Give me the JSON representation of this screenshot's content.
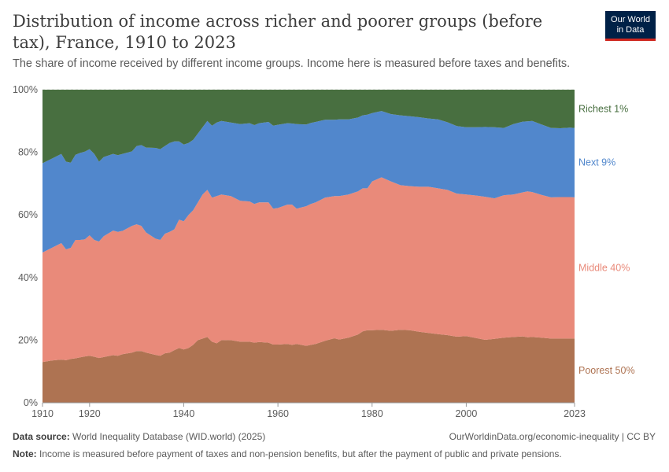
{
  "header": {
    "title": "Distribution of income across richer and poorer groups (before tax), France, 1910 to 2023",
    "subtitle": "The share of income received by different income groups. Income here is measured before taxes and benefits.",
    "logo_line1": "Our World",
    "logo_line2": "in Data"
  },
  "footer": {
    "source_label": "Data source:",
    "source_text": "World Inequality Database (WID.world) (2025)",
    "url_text": "OurWorldinData.org/economic-inequality | CC BY",
    "note_label": "Note:",
    "note_text": "Income is measured before payment of taxes and non-pension benefits, but after the payment of public and private pensions."
  },
  "colors": {
    "poorest": "#ae7352",
    "middle": "#e98a7a",
    "next9": "#5187cc",
    "richest": "#486f40",
    "grid": "#dddddd"
  },
  "chart_data": {
    "type": "area",
    "stacked": true,
    "xlim": [
      1910,
      2023
    ],
    "ylim": [
      0,
      100
    ],
    "yticks": [
      0,
      20,
      40,
      60,
      80,
      100
    ],
    "ytick_labels": [
      "0%",
      "20%",
      "40%",
      "60%",
      "80%",
      "100%"
    ],
    "xticks": [
      1910,
      1920,
      1940,
      1960,
      1980,
      2000,
      2023
    ],
    "xtick_labels": [
      "1910",
      "1920",
      "1940",
      "1960",
      "1980",
      "2000",
      "2023"
    ],
    "grid": "horizontal dashed",
    "legend": "right, end of series",
    "x": [
      1910,
      1912,
      1914,
      1915,
      1916,
      1917,
      1918,
      1919,
      1920,
      1921,
      1922,
      1923,
      1925,
      1926,
      1927,
      1929,
      1930,
      1931,
      1932,
      1934,
      1935,
      1936,
      1937,
      1938,
      1939,
      1940,
      1941,
      1942,
      1943,
      1944,
      1945,
      1946,
      1947,
      1948,
      1950,
      1952,
      1954,
      1955,
      1956,
      1958,
      1959,
      1960,
      1962,
      1963,
      1964,
      1966,
      1967,
      1968,
      1970,
      1972,
      1973,
      1975,
      1977,
      1978,
      1979,
      1980,
      1982,
      1984,
      1986,
      1988,
      1990,
      1992,
      1994,
      1996,
      1998,
      2000,
      2002,
      2004,
      2006,
      2008,
      2010,
      2012,
      2013,
      2014,
      2016,
      2018,
      2020,
      2022,
      2023
    ],
    "series": [
      {
        "name": "Poorest 50%",
        "values": [
          13.0,
          13.5,
          13.8,
          13.6,
          14.0,
          14.2,
          14.5,
          14.8,
          15.0,
          14.7,
          14.3,
          14.6,
          15.2,
          15.0,
          15.5,
          16.0,
          16.5,
          16.5,
          16.0,
          15.3,
          15.0,
          15.8,
          16.0,
          16.8,
          17.5,
          17.0,
          17.5,
          18.5,
          20.0,
          20.5,
          21.0,
          19.5,
          19.0,
          20.0,
          20.0,
          19.5,
          19.5,
          19.2,
          19.4,
          19.2,
          18.6,
          18.6,
          18.8,
          18.5,
          18.8,
          18.2,
          18.5,
          18.8,
          19.8,
          20.6,
          20.2,
          20.8,
          21.8,
          22.8,
          23.2,
          23.2,
          23.3,
          23.0,
          23.3,
          23.2,
          22.7,
          22.3,
          21.9,
          21.6,
          21.1,
          21.3,
          20.7,
          20.1,
          20.4,
          20.8,
          21.0,
          21.2,
          20.9,
          21.0,
          20.8,
          20.5,
          20.5,
          20.5,
          20.5
        ]
      },
      {
        "name": "Middle 40%",
        "values": [
          35.0,
          36.0,
          37.2,
          35.4,
          35.5,
          37.8,
          37.5,
          37.4,
          38.5,
          37.3,
          37.2,
          38.6,
          39.8,
          39.6,
          39.4,
          40.5,
          40.5,
          40.0,
          38.4,
          37.1,
          37.0,
          38.2,
          38.6,
          38.6,
          41.0,
          41.0,
          42.5,
          43.0,
          44.0,
          46.0,
          47.0,
          46.0,
          47.0,
          46.5,
          46.0,
          45.0,
          44.8,
          44.3,
          44.6,
          44.8,
          43.4,
          43.6,
          44.5,
          44.8,
          43.2,
          44.6,
          45.0,
          45.2,
          45.7,
          45.4,
          45.8,
          45.7,
          45.7,
          45.7,
          45.3,
          47.5,
          48.7,
          47.7,
          46.2,
          46.0,
          46.3,
          46.7,
          46.6,
          46.4,
          45.7,
          45.2,
          45.5,
          45.7,
          44.9,
          45.5,
          45.5,
          46.0,
          46.6,
          46.3,
          45.6,
          45.1,
          45.2,
          45.2,
          45.1
        ]
      },
      {
        "name": "Next 9%",
        "values": [
          28.5,
          28.5,
          28.5,
          28.0,
          27.2,
          27.2,
          27.8,
          28.0,
          27.5,
          27.5,
          25.5,
          25.3,
          24.5,
          24.5,
          24.6,
          23.8,
          25.0,
          25.8,
          27.1,
          29.0,
          29.0,
          28.0,
          28.4,
          28.1,
          25.0,
          24.5,
          23.0,
          22.5,
          22.0,
          21.5,
          22.0,
          23.0,
          23.5,
          23.5,
          23.5,
          24.5,
          25.0,
          25.2,
          25.3,
          25.7,
          26.5,
          26.6,
          26.0,
          25.9,
          27.0,
          26.1,
          25.9,
          25.7,
          24.9,
          24.4,
          24.5,
          24.0,
          23.6,
          23.3,
          23.5,
          21.8,
          21.2,
          21.5,
          22.3,
          22.3,
          22.2,
          21.8,
          22.0,
          21.6,
          21.6,
          21.5,
          21.8,
          22.3,
          22.7,
          21.5,
          22.5,
          22.6,
          22.4,
          22.7,
          22.5,
          22.2,
          22.0,
          22.2,
          22.2
        ]
      },
      {
        "name": "Richest 1%",
        "values": [
          23.5,
          22.0,
          20.5,
          23.0,
          23.3,
          20.8,
          20.2,
          19.8,
          19.0,
          20.5,
          23.0,
          21.5,
          20.5,
          20.9,
          20.5,
          19.7,
          18.0,
          17.7,
          18.5,
          18.6,
          19.0,
          18.0,
          17.0,
          16.5,
          16.5,
          17.5,
          17.0,
          16.0,
          14.0,
          12.0,
          10.0,
          11.5,
          10.5,
          10.0,
          10.5,
          11.0,
          10.7,
          11.3,
          10.7,
          10.3,
          11.5,
          11.2,
          10.7,
          10.8,
          11.0,
          11.1,
          10.6,
          10.3,
          9.6,
          9.6,
          9.5,
          9.5,
          8.9,
          8.2,
          8.0,
          7.5,
          6.8,
          7.8,
          8.2,
          8.5,
          8.8,
          9.2,
          9.5,
          10.4,
          11.6,
          12.0,
          12.0,
          11.9,
          12.0,
          12.2,
          11.0,
          10.2,
          10.1,
          10.0,
          11.1,
          12.2,
          12.3,
          12.1,
          12.2
        ]
      }
    ]
  }
}
